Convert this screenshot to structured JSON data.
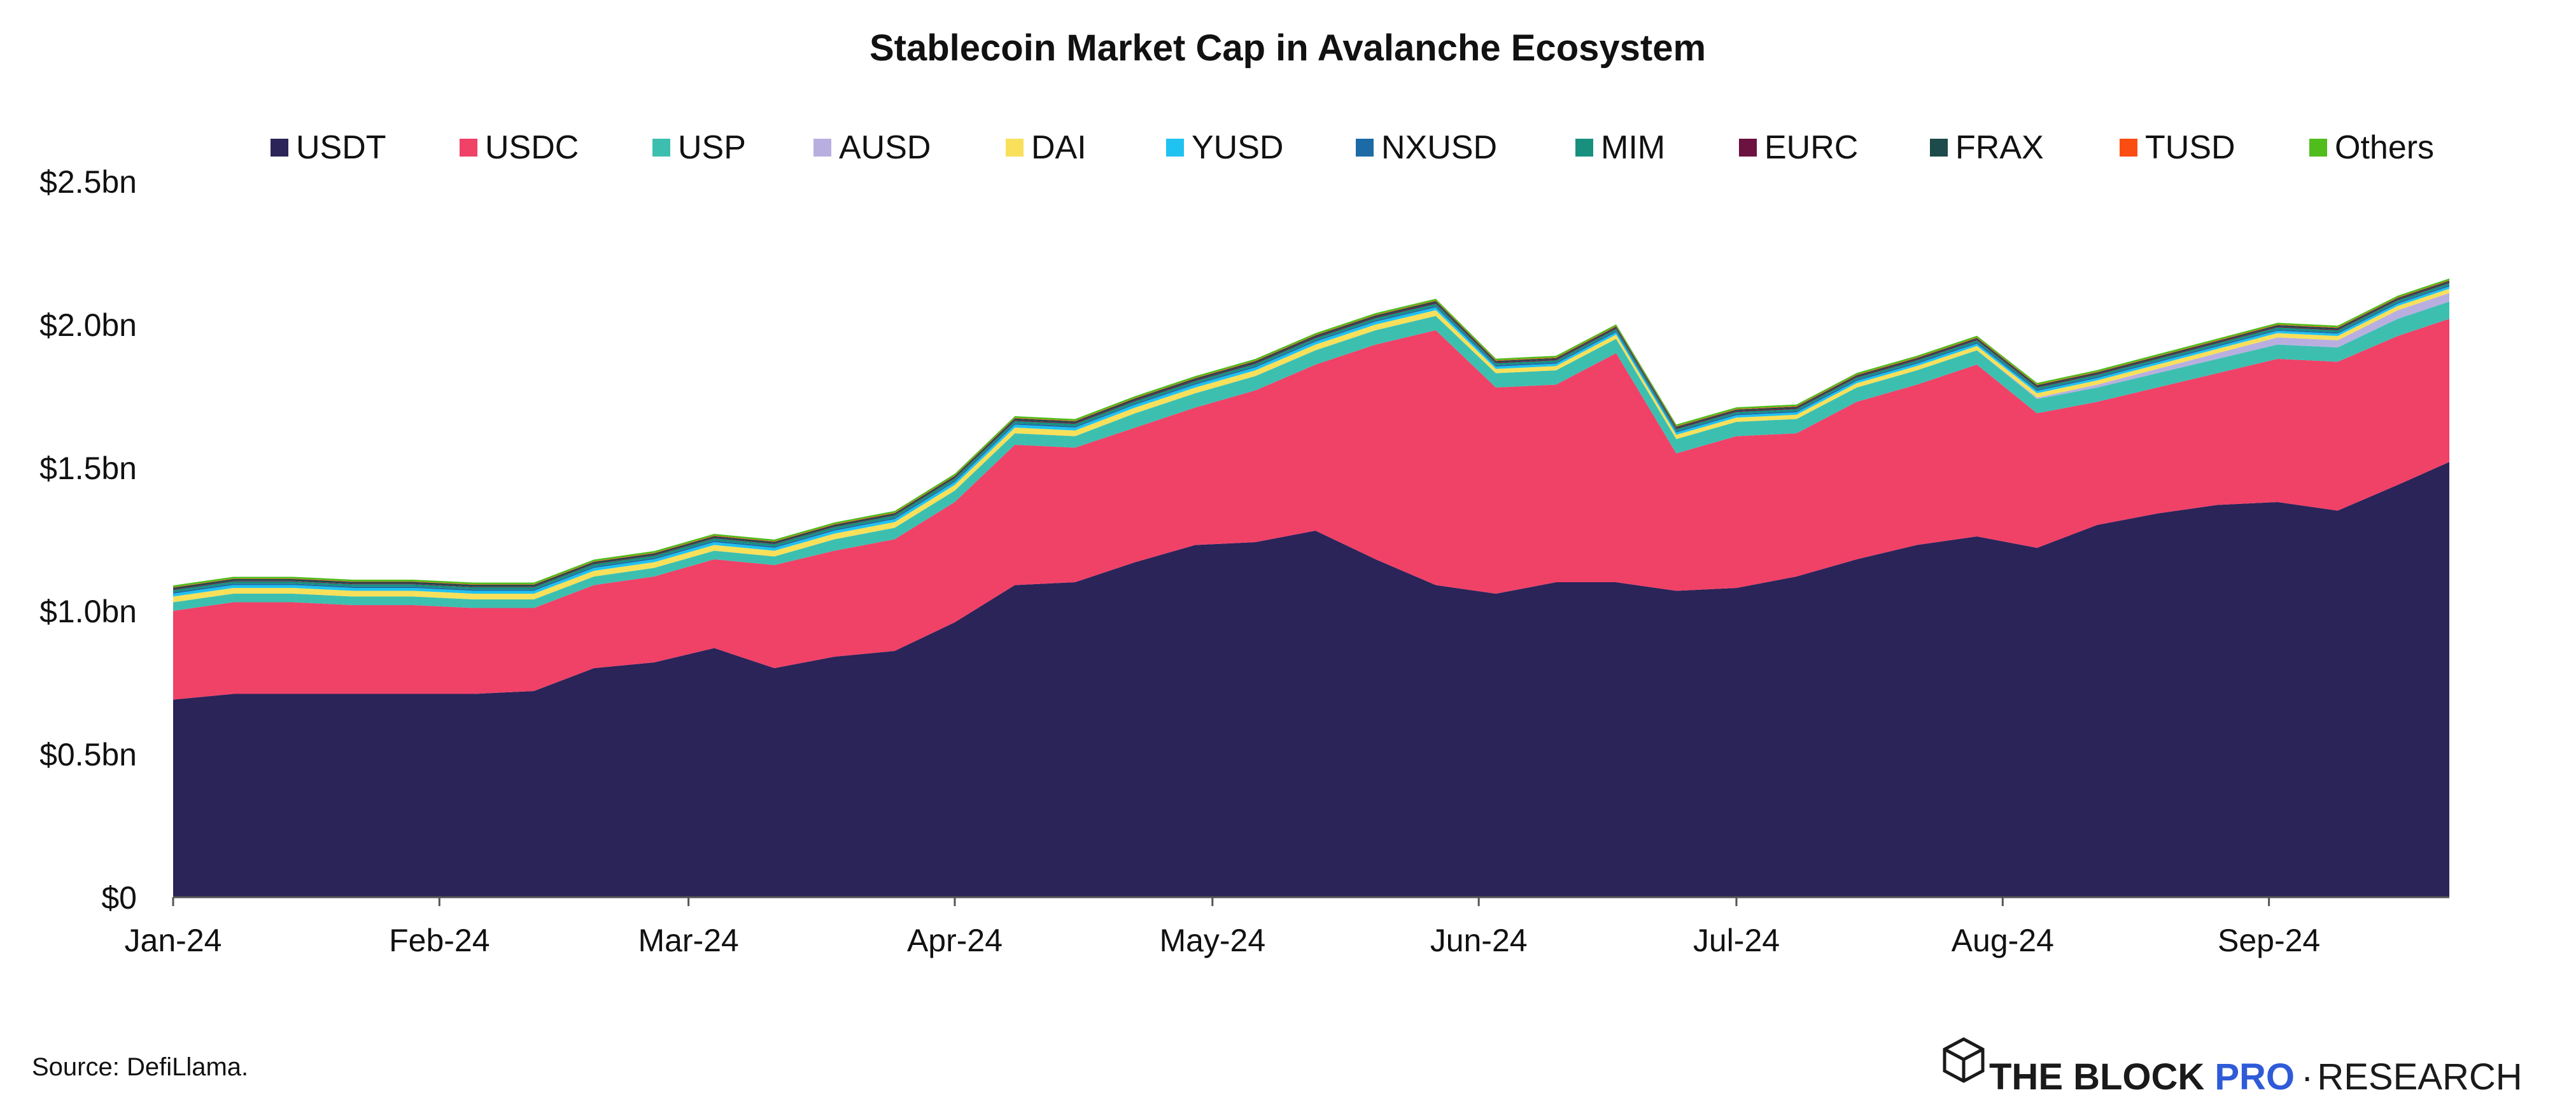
{
  "chart_data": {
    "type": "area",
    "stacked": true,
    "title": "Stablecoin Market Cap in Avalanche Ecosystem",
    "xlabel": "",
    "ylabel": "",
    "x_tick_labels": [
      "Jan-24",
      "Feb-24",
      "Mar-24",
      "Apr-24",
      "May-24",
      "Jun-24",
      "Jul-24",
      "Aug-24",
      "Sep-24"
    ],
    "x_tick_positions": [
      "2024-01-01",
      "2024-02-01",
      "2024-03-01",
      "2024-04-01",
      "2024-05-01",
      "2024-06-01",
      "2024-07-01",
      "2024-08-01",
      "2024-09-01"
    ],
    "x_range": [
      "2024-01-01",
      "2024-09-22"
    ],
    "y_tick_labels": [
      "$0",
      "$0.5bn",
      "$1.0bn",
      "$1.5bn",
      "$2.0bn",
      "$2.5bn"
    ],
    "y_tick_values": [
      0,
      0.5,
      1.0,
      1.5,
      2.0,
      2.5
    ],
    "ylim": [
      0,
      2.5
    ],
    "y_unit": "USD billions",
    "grid": false,
    "legend_position": "top",
    "x": [
      "2024-01-01",
      "2024-01-08",
      "2024-01-15",
      "2024-01-22",
      "2024-01-29",
      "2024-02-05",
      "2024-02-12",
      "2024-02-19",
      "2024-02-26",
      "2024-03-04",
      "2024-03-11",
      "2024-03-18",
      "2024-03-25",
      "2024-04-01",
      "2024-04-08",
      "2024-04-15",
      "2024-04-22",
      "2024-04-29",
      "2024-05-06",
      "2024-05-13",
      "2024-05-20",
      "2024-05-27",
      "2024-06-03",
      "2024-06-10",
      "2024-06-17",
      "2024-06-24",
      "2024-07-01",
      "2024-07-08",
      "2024-07-15",
      "2024-07-22",
      "2024-07-29",
      "2024-08-05",
      "2024-08-12",
      "2024-08-19",
      "2024-08-26",
      "2024-09-02",
      "2024-09-09",
      "2024-09-16",
      "2024-09-22"
    ],
    "series": [
      {
        "name": "USDT",
        "color": "#2a2459",
        "values": [
          0.69,
          0.71,
          0.71,
          0.71,
          0.71,
          0.71,
          0.72,
          0.8,
          0.82,
          0.87,
          0.8,
          0.84,
          0.86,
          0.96,
          1.09,
          1.1,
          1.17,
          1.23,
          1.24,
          1.28,
          1.18,
          1.09,
          1.06,
          1.1,
          1.1,
          1.07,
          1.08,
          1.12,
          1.18,
          1.23,
          1.26,
          1.22,
          1.3,
          1.34,
          1.37,
          1.38,
          1.35,
          1.44,
          1.52
        ]
      },
      {
        "name": "USDC",
        "color": "#f04167",
        "values": [
          0.31,
          0.32,
          0.32,
          0.31,
          0.31,
          0.3,
          0.29,
          0.29,
          0.3,
          0.31,
          0.36,
          0.37,
          0.39,
          0.42,
          0.49,
          0.47,
          0.47,
          0.48,
          0.53,
          0.58,
          0.75,
          0.89,
          0.72,
          0.69,
          0.8,
          0.48,
          0.53,
          0.5,
          0.55,
          0.56,
          0.6,
          0.47,
          0.43,
          0.44,
          0.46,
          0.5,
          0.52,
          0.52,
          0.5
        ]
      },
      {
        "name": "USP",
        "color": "#3dbfb0",
        "values": [
          0.03,
          0.03,
          0.03,
          0.03,
          0.03,
          0.03,
          0.03,
          0.03,
          0.03,
          0.03,
          0.03,
          0.04,
          0.04,
          0.04,
          0.04,
          0.04,
          0.05,
          0.05,
          0.05,
          0.05,
          0.05,
          0.05,
          0.05,
          0.05,
          0.05,
          0.05,
          0.05,
          0.05,
          0.05,
          0.05,
          0.05,
          0.05,
          0.05,
          0.05,
          0.05,
          0.05,
          0.05,
          0.06,
          0.06
        ]
      },
      {
        "name": "AUSD",
        "color": "#b8afe0",
        "values": [
          0,
          0,
          0,
          0,
          0,
          0,
          0,
          0,
          0,
          0,
          0,
          0,
          0,
          0,
          0,
          0,
          0,
          0,
          0,
          0,
          0,
          0,
          0,
          0,
          0,
          0,
          0,
          0,
          0,
          0,
          0,
          0.005,
          0.01,
          0.015,
          0.02,
          0.025,
          0.025,
          0.03,
          0.03
        ]
      },
      {
        "name": "DAI",
        "color": "#f8e05b",
        "values": [
          0.02,
          0.02,
          0.02,
          0.02,
          0.02,
          0.02,
          0.02,
          0.02,
          0.02,
          0.02,
          0.02,
          0.02,
          0.02,
          0.02,
          0.02,
          0.02,
          0.02,
          0.02,
          0.02,
          0.02,
          0.02,
          0.02,
          0.015,
          0.015,
          0.015,
          0.015,
          0.015,
          0.015,
          0.015,
          0.015,
          0.015,
          0.015,
          0.015,
          0.015,
          0.015,
          0.015,
          0.015,
          0.015,
          0.015
        ]
      },
      {
        "name": "YUSD",
        "color": "#1fc2f0",
        "values": [
          0.01,
          0.01,
          0.01,
          0.01,
          0.01,
          0.01,
          0.01,
          0.01,
          0.01,
          0.01,
          0.01,
          0.01,
          0.01,
          0.01,
          0.01,
          0.01,
          0.01,
          0.01,
          0.01,
          0.01,
          0.01,
          0.01,
          0.008,
          0.008,
          0.008,
          0.008,
          0.008,
          0.008,
          0.008,
          0.008,
          0.008,
          0.008,
          0.008,
          0.008,
          0.008,
          0.008,
          0.008,
          0.008,
          0.008
        ]
      },
      {
        "name": "NXUSD",
        "color": "#1c6aa6",
        "values": [
          0.005,
          0.005,
          0.005,
          0.005,
          0.005,
          0.005,
          0.005,
          0.005,
          0.005,
          0.005,
          0.005,
          0.005,
          0.005,
          0.005,
          0.005,
          0.005,
          0.005,
          0.005,
          0.005,
          0.005,
          0.005,
          0.005,
          0.005,
          0.005,
          0.005,
          0.005,
          0.005,
          0.005,
          0.005,
          0.005,
          0.005,
          0.005,
          0.005,
          0.005,
          0.005,
          0.005,
          0.005,
          0.005,
          0.005
        ]
      },
      {
        "name": "MIM",
        "color": "#18907e",
        "values": [
          0.008,
          0.008,
          0.008,
          0.008,
          0.008,
          0.008,
          0.008,
          0.008,
          0.008,
          0.008,
          0.008,
          0.008,
          0.008,
          0.008,
          0.008,
          0.008,
          0.008,
          0.008,
          0.008,
          0.008,
          0.008,
          0.008,
          0.007,
          0.007,
          0.007,
          0.007,
          0.007,
          0.007,
          0.007,
          0.007,
          0.007,
          0.007,
          0.007,
          0.007,
          0.007,
          0.007,
          0.007,
          0.007,
          0.007
        ]
      },
      {
        "name": "EURC",
        "color": "#6b1240",
        "values": [
          0.002,
          0.002,
          0.002,
          0.002,
          0.002,
          0.002,
          0.002,
          0.002,
          0.002,
          0.002,
          0.002,
          0.002,
          0.002,
          0.002,
          0.003,
          0.003,
          0.003,
          0.003,
          0.003,
          0.003,
          0.003,
          0.003,
          0.003,
          0.003,
          0.003,
          0.003,
          0.003,
          0.003,
          0.003,
          0.003,
          0.003,
          0.003,
          0.003,
          0.003,
          0.003,
          0.003,
          0.003,
          0.003,
          0.003
        ]
      },
      {
        "name": "FRAX",
        "color": "#1d4a4a",
        "values": [
          0.006,
          0.006,
          0.006,
          0.006,
          0.006,
          0.006,
          0.006,
          0.006,
          0.006,
          0.006,
          0.006,
          0.006,
          0.006,
          0.006,
          0.006,
          0.006,
          0.006,
          0.006,
          0.006,
          0.006,
          0.006,
          0.006,
          0.005,
          0.005,
          0.005,
          0.005,
          0.005,
          0.005,
          0.005,
          0.005,
          0.005,
          0.005,
          0.005,
          0.005,
          0.005,
          0.005,
          0.005,
          0.005,
          0.005
        ]
      },
      {
        "name": "TUSD",
        "color": "#fb4d12",
        "values": [
          0.002,
          0.002,
          0.002,
          0.002,
          0.002,
          0.002,
          0.002,
          0.002,
          0.002,
          0.002,
          0.002,
          0.002,
          0.002,
          0.002,
          0.002,
          0.002,
          0.002,
          0.002,
          0.002,
          0.002,
          0.002,
          0.002,
          0.002,
          0.002,
          0.002,
          0.002,
          0.002,
          0.002,
          0.002,
          0.002,
          0.002,
          0.002,
          0.002,
          0.002,
          0.002,
          0.002,
          0.002,
          0.002,
          0.002
        ]
      },
      {
        "name": "Others",
        "color": "#4fbd1c",
        "values": [
          0.006,
          0.006,
          0.006,
          0.006,
          0.006,
          0.006,
          0.006,
          0.006,
          0.006,
          0.006,
          0.006,
          0.006,
          0.006,
          0.006,
          0.006,
          0.006,
          0.006,
          0.006,
          0.006,
          0.006,
          0.006,
          0.006,
          0.006,
          0.006,
          0.006,
          0.006,
          0.006,
          0.006,
          0.006,
          0.006,
          0.006,
          0.006,
          0.006,
          0.006,
          0.006,
          0.006,
          0.006,
          0.006,
          0.006
        ]
      }
    ]
  },
  "source_note": "Source: DefiLlama.",
  "brand": {
    "name": "THE BLOCK",
    "pro": "PRO",
    "separator": "·",
    "suffix": "RESEARCH",
    "icon": "cube-logo-icon"
  }
}
